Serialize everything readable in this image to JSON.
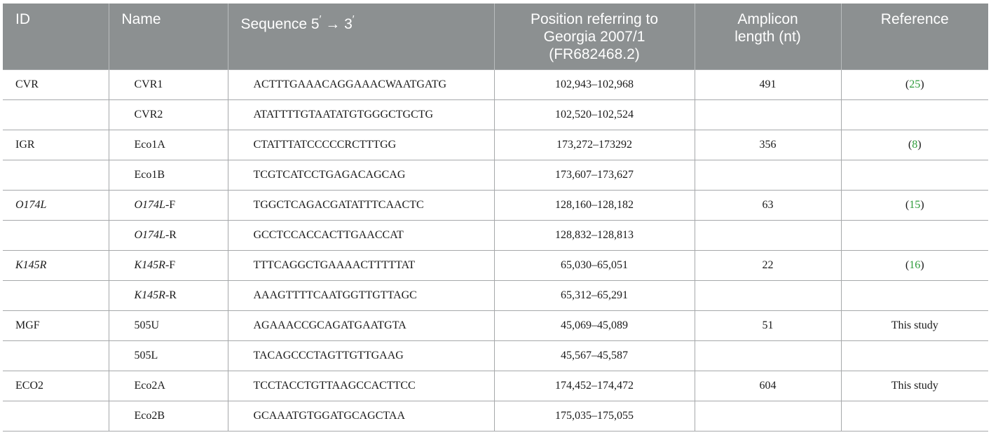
{
  "headers": {
    "id": "ID",
    "name": "Name",
    "sequence_prefix": "Sequence 5",
    "sequence_prime1": "′",
    "sequence_arrow": " → 3",
    "sequence_prime2": "′",
    "position_line1": "Position referring to",
    "position_line2": "Georgia 2007/1",
    "position_line3": "(FR682468.2)",
    "amplicon_line1": "Amplicon",
    "amplicon_line2": "length (nt)",
    "reference": "Reference"
  },
  "rows": [
    {
      "id": "CVR",
      "name": "CVR1",
      "name_suffix": "",
      "sequence": "ACTTTGAAACAGGAAACWAATGATG",
      "position": "102,943–102,968",
      "amplicon": "491",
      "ref_open": "(",
      "ref_num": "25",
      "ref_close": ")",
      "ref_text": ""
    },
    {
      "id": "",
      "name": "CVR2",
      "name_suffix": "",
      "sequence": "ATATTTTGTAATATGTGGGCTGCTG",
      "position": "102,520–102,524",
      "amplicon": "",
      "ref_open": "",
      "ref_num": "",
      "ref_close": "",
      "ref_text": ""
    },
    {
      "id": "IGR",
      "name": "Eco1A",
      "name_suffix": "",
      "sequence": "CTATTTATCCCCCRCTTTGG",
      "position": "173,272–173292",
      "amplicon": "356",
      "ref_open": "(",
      "ref_num": "8",
      "ref_close": ")",
      "ref_text": ""
    },
    {
      "id": "",
      "name": "Eco1B",
      "name_suffix": "",
      "sequence": "TCGTCATCCTGAGACAGCAG",
      "position": "173,607–173,627",
      "amplicon": "",
      "ref_open": "",
      "ref_num": "",
      "ref_close": "",
      "ref_text": ""
    },
    {
      "id": "O174L",
      "name": "O174L",
      "name_suffix": "-F",
      "sequence": "TGGCTCAGACGATATTTCAACTC",
      "position": "128,160–128,182",
      "amplicon": "63",
      "ref_open": "(",
      "ref_num": "15",
      "ref_close": ")",
      "ref_text": ""
    },
    {
      "id": "",
      "name": "O174L",
      "name_suffix": "-R",
      "sequence": "GCCTCCACCACTTGAACCAT",
      "position": "128,832–128,813",
      "amplicon": "",
      "ref_open": "",
      "ref_num": "",
      "ref_close": "",
      "ref_text": ""
    },
    {
      "id": "K145R",
      "name": "K145R",
      "name_suffix": "-F",
      "sequence": "TTTCAGGCTGAAAACTTTTTAT",
      "position": "65,030–65,051",
      "amplicon": "22",
      "ref_open": "(",
      "ref_num": "16",
      "ref_close": ")",
      "ref_text": ""
    },
    {
      "id": "",
      "name": "K145R",
      "name_suffix": "-R",
      "sequence": "AAAGTTTTCAATGGTTGTTAGC",
      "position": "65,312–65,291",
      "amplicon": "",
      "ref_open": "",
      "ref_num": "",
      "ref_close": "",
      "ref_text": ""
    },
    {
      "id": "MGF",
      "name": "505U",
      "name_suffix": "",
      "sequence": "AGAAACCGCAGATGAATGTA",
      "position": "45,069–45,089",
      "amplicon": "51",
      "ref_open": "",
      "ref_num": "",
      "ref_close": "",
      "ref_text": "This study"
    },
    {
      "id": "",
      "name": "505L",
      "name_suffix": "",
      "sequence": "TACAGCCCTAGTTGTTGAAG",
      "position": "45,567–45,587",
      "amplicon": "",
      "ref_open": "",
      "ref_num": "",
      "ref_close": "",
      "ref_text": ""
    },
    {
      "id": "ECO2",
      "name": "Eco2A",
      "name_suffix": "",
      "sequence": "TCCTACCTGTTAAGCCACTTCC",
      "position": "174,452–174,472",
      "amplicon": "604",
      "ref_open": "",
      "ref_num": "",
      "ref_close": "",
      "ref_text": "This study"
    },
    {
      "id": "",
      "name": "Eco2B",
      "name_suffix": "",
      "sequence": "GCAAATGTGGATGCAGCTAA",
      "position": "175,035–175,055",
      "amplicon": "",
      "ref_open": "",
      "ref_num": "",
      "ref_close": "",
      "ref_text": ""
    }
  ],
  "italic_ids": [
    "O174L",
    "K145R"
  ],
  "colors": {
    "header_bg": "#8c9091",
    "ref_link": "#2e9b3b"
  }
}
